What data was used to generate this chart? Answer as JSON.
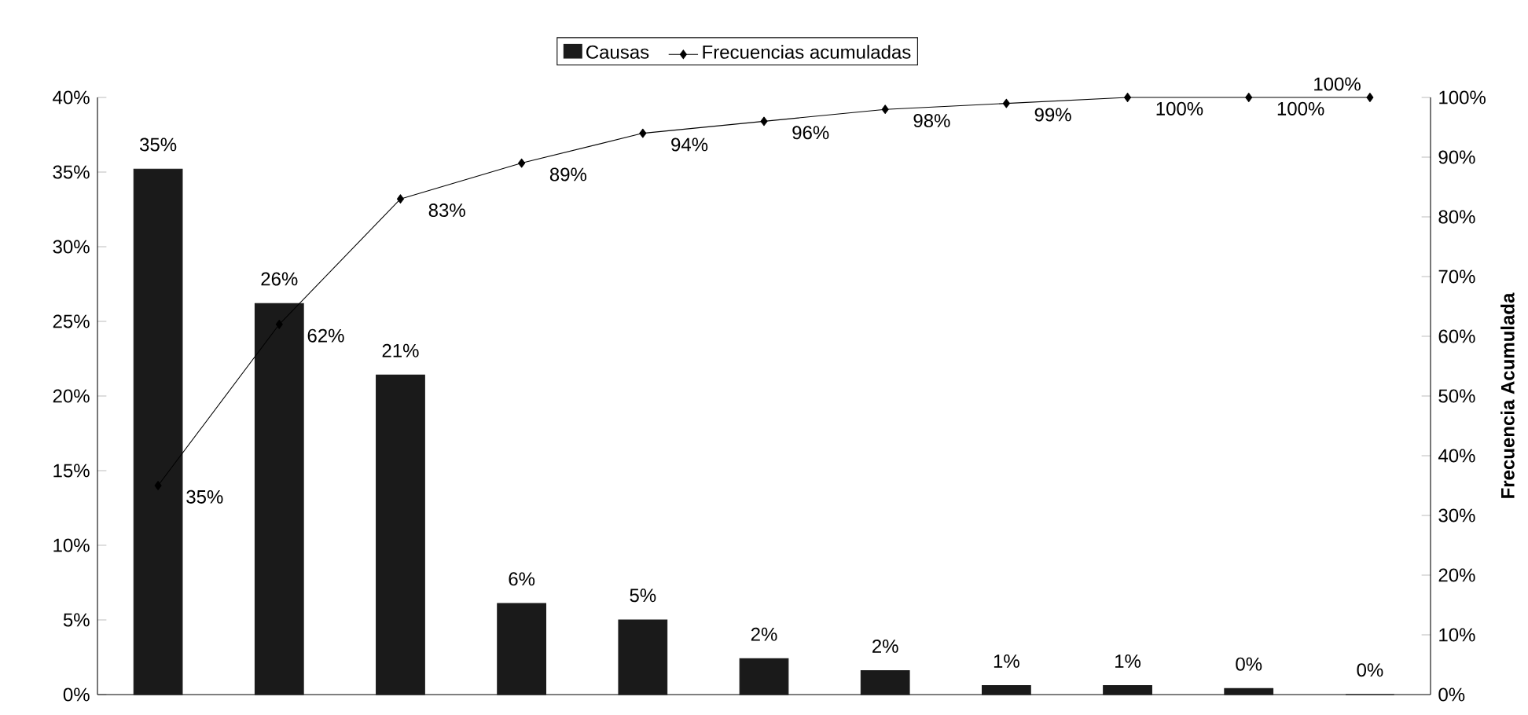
{
  "chart_data": {
    "type": "bar",
    "categories": [
      null,
      null,
      null,
      null,
      null,
      null,
      null,
      null,
      null,
      null,
      null
    ],
    "series": [
      {
        "name": "Causas",
        "color": "#1a1a1a",
        "values": [
          35.2,
          26.2,
          21.4,
          6.1,
          5.0,
          2.4,
          1.6,
          0.6,
          0.6,
          0.4,
          0
        ],
        "value_labels": [
          "35%",
          "26%",
          "21%",
          "6%",
          "5%",
          "2%",
          "2%",
          "1%",
          "1%",
          "0%",
          "0%"
        ]
      },
      {
        "name": "Frecuencias acumuladas",
        "type": "line",
        "axis": "y2",
        "color": "#000000",
        "marker": "diamond",
        "line_style": "solid",
        "values": [
          35,
          62,
          83,
          89,
          94,
          96,
          98,
          99,
          100,
          100,
          100
        ],
        "value_labels": [
          "35%",
          "62%",
          "83%",
          "89%",
          "94%",
          "96%",
          "98%",
          "99%",
          "100%",
          "100%",
          "100%"
        ]
      }
    ],
    "ylim": [
      0,
      40
    ],
    "yticks": [
      {
        "value": 0,
        "label": "0%"
      },
      {
        "value": 5,
        "label": "5%"
      },
      {
        "value": 10,
        "label": "10%"
      },
      {
        "value": 15,
        "label": "15%"
      },
      {
        "value": 20,
        "label": "20%"
      },
      {
        "value": 25,
        "label": "25%"
      },
      {
        "value": 30,
        "label": "30%"
      },
      {
        "value": 35,
        "label": "35%"
      },
      {
        "value": 40,
        "label": "40%"
      }
    ],
    "y2lim": [
      0,
      100
    ],
    "y2ticks": [
      {
        "value": 0,
        "label": "0%"
      },
      {
        "value": 10,
        "label": "10%"
      },
      {
        "value": 20,
        "label": "20%"
      },
      {
        "value": 30,
        "label": "30%"
      },
      {
        "value": 40,
        "label": "40%"
      },
      {
        "value": 50,
        "label": "50%"
      },
      {
        "value": 60,
        "label": "60%"
      },
      {
        "value": 70,
        "label": "70%"
      },
      {
        "value": 80,
        "label": "80%"
      },
      {
        "value": 90,
        "label": "90%"
      },
      {
        "value": 100,
        "label": "100%"
      }
    ],
    "y2label": "Frecuencia Acumulada",
    "legend": "top",
    "grid": false
  }
}
